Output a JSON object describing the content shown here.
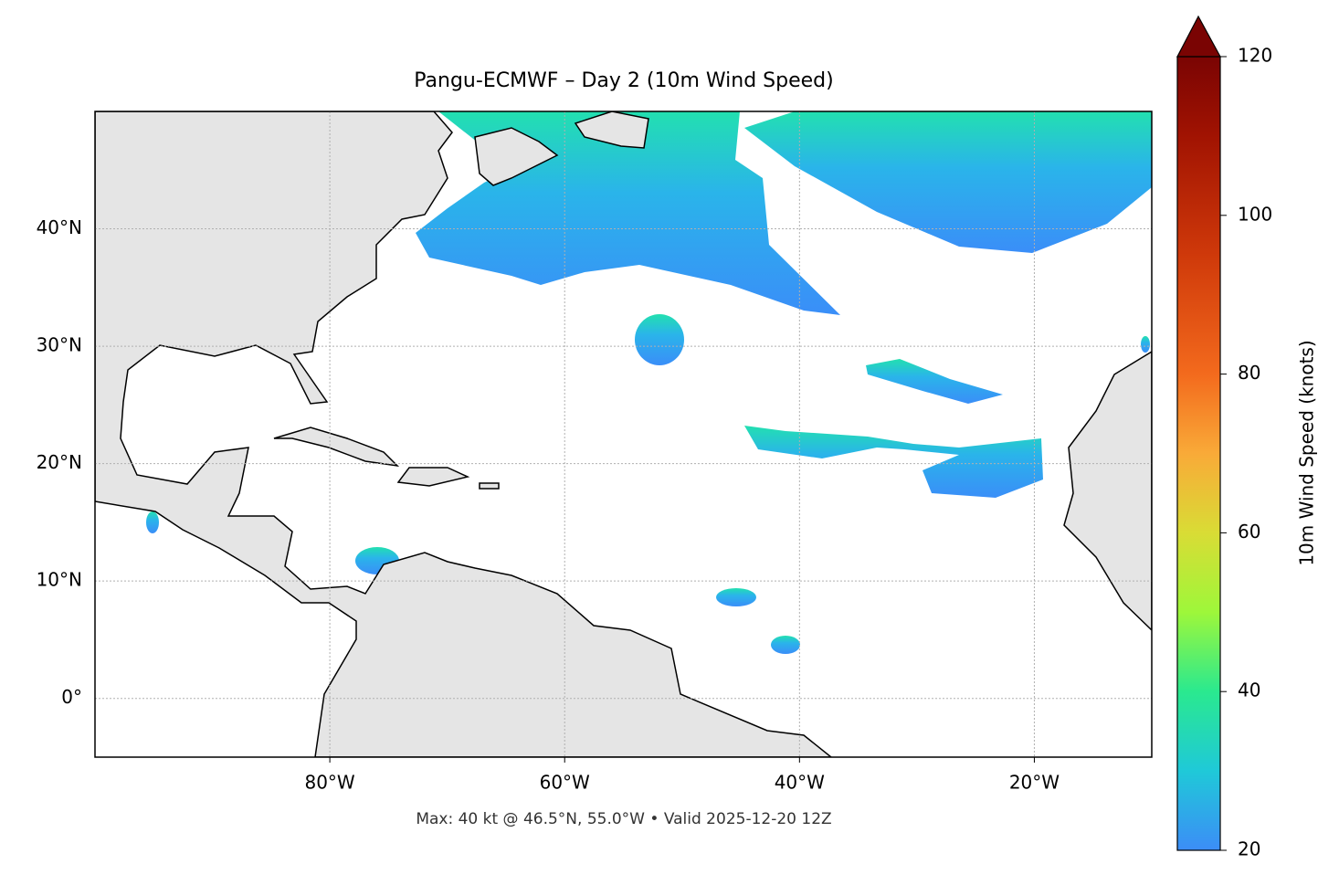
{
  "chart_data": {
    "type": "map",
    "title": "Pangu-ECMWF – Day 2 (10m Wind Speed)",
    "caption": "Max: 40 kt @ 46.5°N, 55.0°W • Valid 2025-12-20 12Z",
    "xlim": [
      -100,
      -10
    ],
    "ylim": [
      -5,
      50
    ],
    "xticks": [
      {
        "value": -80,
        "label": "80°W"
      },
      {
        "value": -60,
        "label": "60°W"
      },
      {
        "value": -40,
        "label": "40°W"
      },
      {
        "value": -20,
        "label": "20°W"
      }
    ],
    "yticks": [
      {
        "value": 0,
        "label": "0°"
      },
      {
        "value": 10,
        "label": "10°N"
      },
      {
        "value": 20,
        "label": "20°N"
      },
      {
        "value": 30,
        "label": "30°N"
      },
      {
        "value": 40,
        "label": "40°N"
      }
    ],
    "grid": true,
    "colorbar": {
      "label": "10m Wind Speed (knots)",
      "lim": [
        20,
        120
      ],
      "ticks": [
        20,
        40,
        60,
        80,
        100,
        120
      ]
    }
  }
}
